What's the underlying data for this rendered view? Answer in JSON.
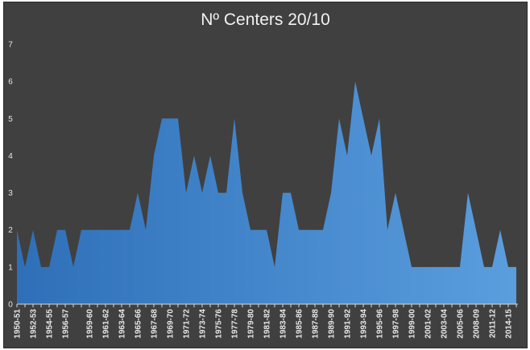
{
  "chart_data": {
    "type": "area",
    "title": "Nº Centers 20/10",
    "xlabel": "",
    "ylabel": "",
    "ylim": [
      0,
      7
    ],
    "yticks": [
      0,
      1,
      2,
      3,
      4,
      5,
      6,
      7
    ],
    "grid": false,
    "legend": "none",
    "gradient_colors": [
      "#2e6fb8",
      "#5b9ede"
    ],
    "x": [
      "1950-51",
      "1951-52",
      "1952-53",
      "1953-54",
      "1954-55",
      "1955-56",
      "1956-57",
      "1957-58",
      "1958-59",
      "1959-60",
      "1960-61",
      "1961-62",
      "1962-63",
      "1963-64",
      "1964-65",
      "1965-66",
      "1966-67",
      "1967-68",
      "1968-69",
      "1969-70",
      "1970-71",
      "1971-72",
      "1972-73",
      "1973-74",
      "1974-75",
      "1975-76",
      "1976-77",
      "1977-78",
      "1978-79",
      "1979-80",
      "1980-81",
      "1981-82",
      "1982-83",
      "1983-84",
      "1984-85",
      "1985-86",
      "1986-87",
      "1987-88",
      "1988-89",
      "1989-90",
      "1990-91",
      "1991-92",
      "1992-93",
      "1993-94",
      "1994-95",
      "1995-96",
      "1996-97",
      "1997-98",
      "1998-99",
      "1999-00",
      "2000-01",
      "2001-02",
      "2002-03",
      "2003-04",
      "2004-05",
      "2005-06",
      "2006-07",
      "2008-09",
      "2009-10",
      "2011-12",
      "2013-14",
      "2014-15",
      "2015-16"
    ],
    "values": [
      2,
      1,
      2,
      1,
      1,
      2,
      2,
      1,
      2,
      2,
      2,
      2,
      2,
      2,
      2,
      3,
      2,
      4,
      5,
      5,
      5,
      3,
      4,
      3,
      4,
      3,
      3,
      5,
      3,
      2,
      2,
      2,
      1,
      3,
      3,
      2,
      2,
      2,
      2,
      3,
      5,
      4,
      6,
      5,
      4,
      5,
      2,
      3,
      2,
      1,
      1,
      1,
      1,
      1,
      1,
      1,
      3,
      2,
      1,
      1,
      2,
      1,
      1
    ],
    "xtick_labels": [
      "1950-51",
      "1952-53",
      "1954-55",
      "1956-57",
      "1959-60",
      "1961-62",
      "1963-64",
      "1965-66",
      "1967-68",
      "1969-70",
      "1971-72",
      "1973-74",
      "1975-76",
      "1977-78",
      "1979-80",
      "1981-82",
      "1983-84",
      "1985-86",
      "1987-88",
      "1989-90",
      "1991-92",
      "1993-94",
      "1995-96",
      "1997-98",
      "1999-00",
      "2001-02",
      "2003-04",
      "2005-06",
      "2008-09",
      "2011-12",
      "2014-15"
    ]
  }
}
